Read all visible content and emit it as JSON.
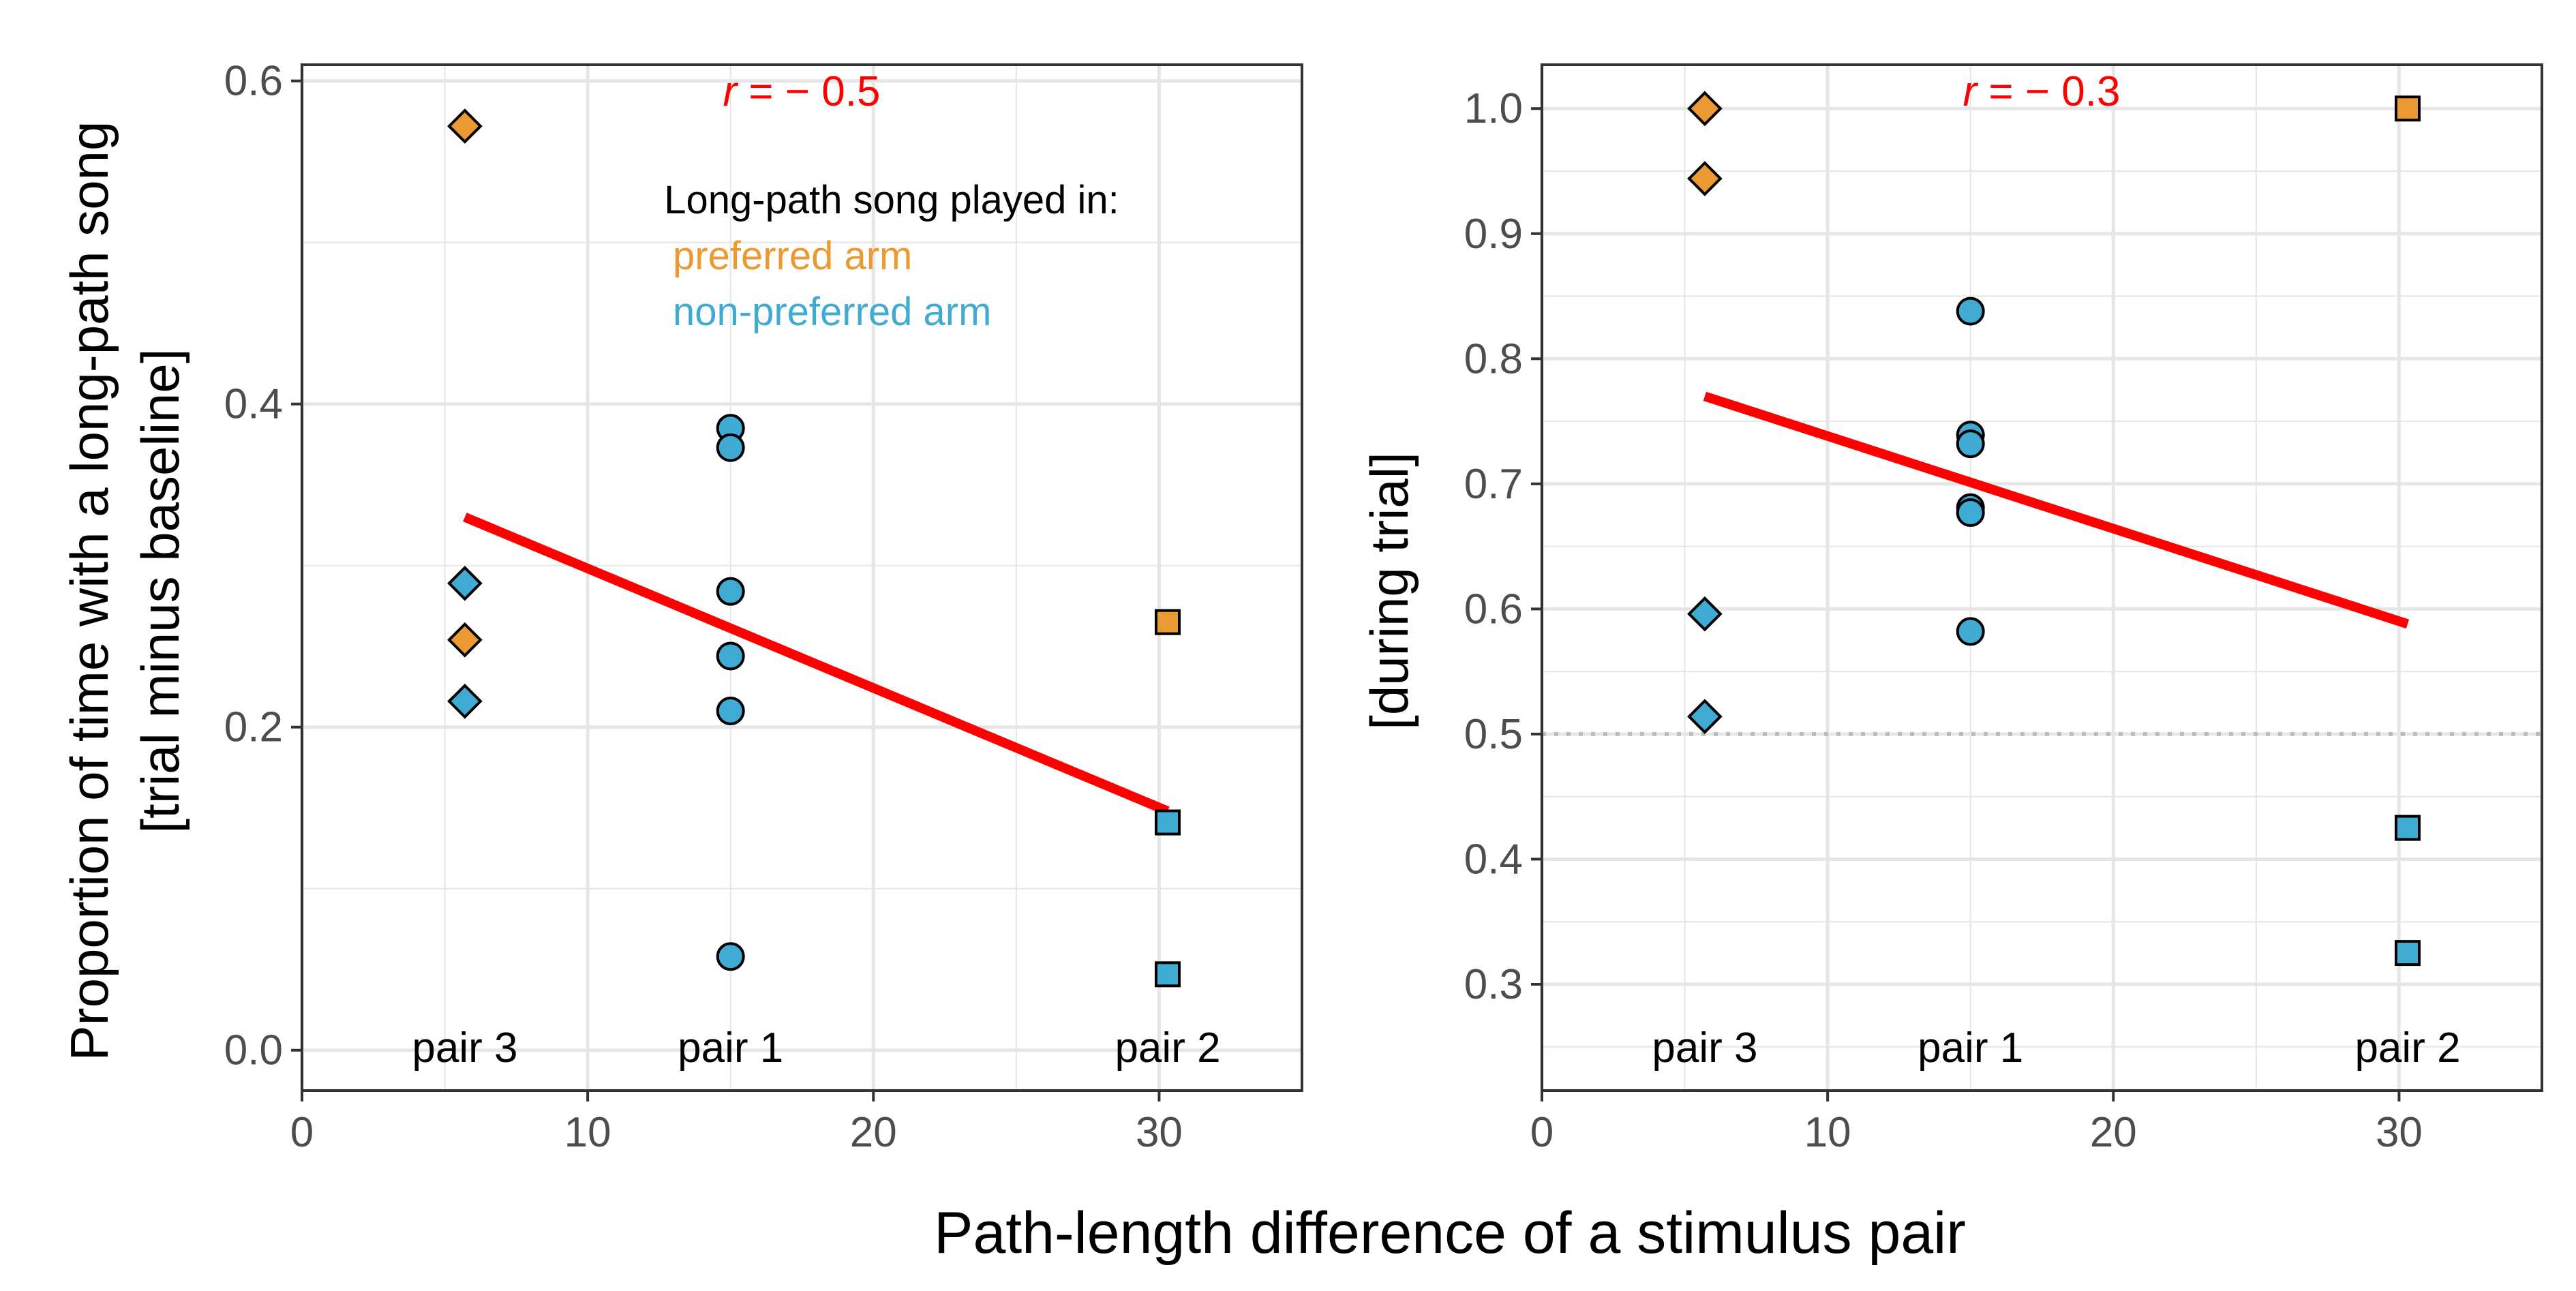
{
  "figure": {
    "x_axis_label": "Path-length difference of a stimulus pair",
    "y_axis_label_left_line1": "Proportion of time with a long-path song",
    "y_axis_label_left_line2": "[trial minus baseline]",
    "y_axis_label_right": "[during trial]"
  },
  "colors": {
    "preferred": "#EB9A33",
    "non_preferred": "#3FAAD2",
    "fit_line": "#FF0000",
    "correlation_text": "#FF0000",
    "reference_line": "#BBBBBB",
    "grid": "#E6E6E6"
  },
  "chart_data": [
    {
      "type": "scatter",
      "panel": "left",
      "xlim": [
        0,
        35
      ],
      "ylim": [
        -0.025,
        0.61
      ],
      "x_ticks": [
        0,
        10,
        20,
        30
      ],
      "y_ticks": [
        0.0,
        0.2,
        0.4,
        0.6
      ],
      "y_tick_labels": [
        "0.0",
        "0.2",
        "0.4",
        "0.6"
      ],
      "grid": true,
      "correlation": {
        "r_symbol": "r",
        "text": " = − 0.5"
      },
      "legend": {
        "title": "Long-path song played in:",
        "items": [
          {
            "label": "preferred arm",
            "color": "#EB9A33"
          },
          {
            "label": "non-preferred arm",
            "color": "#3FAAD2"
          }
        ]
      },
      "pair_labels": [
        {
          "label": "pair 3",
          "x": 5.7
        },
        {
          "label": "pair 1",
          "x": 15.0
        },
        {
          "label": "pair 2",
          "x": 30.3
        }
      ],
      "points": [
        {
          "x": 5.7,
          "y": 0.572,
          "shape": "diamond",
          "group": "preferred"
        },
        {
          "x": 5.7,
          "y": 0.254,
          "shape": "diamond",
          "group": "preferred"
        },
        {
          "x": 5.7,
          "y": 0.289,
          "shape": "diamond",
          "group": "non_preferred"
        },
        {
          "x": 5.7,
          "y": 0.216,
          "shape": "diamond",
          "group": "non_preferred"
        },
        {
          "x": 15.0,
          "y": 0.385,
          "shape": "circle",
          "group": "non_preferred"
        },
        {
          "x": 15.0,
          "y": 0.373,
          "shape": "circle",
          "group": "non_preferred"
        },
        {
          "x": 15.0,
          "y": 0.284,
          "shape": "circle",
          "group": "non_preferred"
        },
        {
          "x": 15.0,
          "y": 0.244,
          "shape": "circle",
          "group": "non_preferred"
        },
        {
          "x": 15.0,
          "y": 0.21,
          "shape": "circle",
          "group": "non_preferred"
        },
        {
          "x": 15.0,
          "y": 0.058,
          "shape": "circle",
          "group": "non_preferred"
        },
        {
          "x": 30.3,
          "y": 0.265,
          "shape": "square",
          "group": "preferred"
        },
        {
          "x": 30.3,
          "y": 0.141,
          "shape": "square",
          "group": "non_preferred"
        },
        {
          "x": 30.3,
          "y": 0.047,
          "shape": "square",
          "group": "non_preferred"
        }
      ],
      "fit_line": {
        "x": [
          5.7,
          30.3
        ],
        "y": [
          0.33,
          0.148
        ]
      }
    },
    {
      "type": "scatter",
      "panel": "right",
      "xlim": [
        0,
        35
      ],
      "ylim": [
        0.215,
        1.035
      ],
      "x_ticks": [
        0,
        10,
        20,
        30
      ],
      "y_ticks": [
        0.3,
        0.4,
        0.5,
        0.6,
        0.7,
        0.8,
        0.9,
        1.0
      ],
      "y_tick_labels": [
        "0.3",
        "0.4",
        "0.5",
        "0.6",
        "0.7",
        "0.8",
        "0.9",
        "1.0"
      ],
      "grid": true,
      "reference_line": {
        "y": 0.5,
        "style": "dotted"
      },
      "correlation": {
        "r_symbol": "r",
        "text": " = − 0.3"
      },
      "pair_labels": [
        {
          "label": "pair 3",
          "x": 5.7
        },
        {
          "label": "pair 1",
          "x": 15.0
        },
        {
          "label": "pair 2",
          "x": 30.3
        }
      ],
      "points": [
        {
          "x": 5.7,
          "y": 1.0,
          "shape": "diamond",
          "group": "preferred"
        },
        {
          "x": 5.7,
          "y": 0.944,
          "shape": "diamond",
          "group": "preferred"
        },
        {
          "x": 5.7,
          "y": 0.596,
          "shape": "diamond",
          "group": "non_preferred"
        },
        {
          "x": 5.7,
          "y": 0.514,
          "shape": "diamond",
          "group": "non_preferred"
        },
        {
          "x": 15.0,
          "y": 0.838,
          "shape": "circle",
          "group": "non_preferred"
        },
        {
          "x": 15.0,
          "y": 0.739,
          "shape": "circle",
          "group": "non_preferred"
        },
        {
          "x": 15.0,
          "y": 0.732,
          "shape": "circle",
          "group": "non_preferred"
        },
        {
          "x": 15.0,
          "y": 0.681,
          "shape": "circle",
          "group": "non_preferred"
        },
        {
          "x": 15.0,
          "y": 0.677,
          "shape": "circle",
          "group": "non_preferred"
        },
        {
          "x": 15.0,
          "y": 0.582,
          "shape": "circle",
          "group": "non_preferred"
        },
        {
          "x": 30.3,
          "y": 1.0,
          "shape": "square",
          "group": "preferred"
        },
        {
          "x": 30.3,
          "y": 0.425,
          "shape": "square",
          "group": "non_preferred"
        },
        {
          "x": 30.3,
          "y": 0.325,
          "shape": "square",
          "group": "non_preferred"
        }
      ],
      "fit_line": {
        "x": [
          5.7,
          30.3
        ],
        "y": [
          0.77,
          0.588
        ]
      }
    }
  ]
}
